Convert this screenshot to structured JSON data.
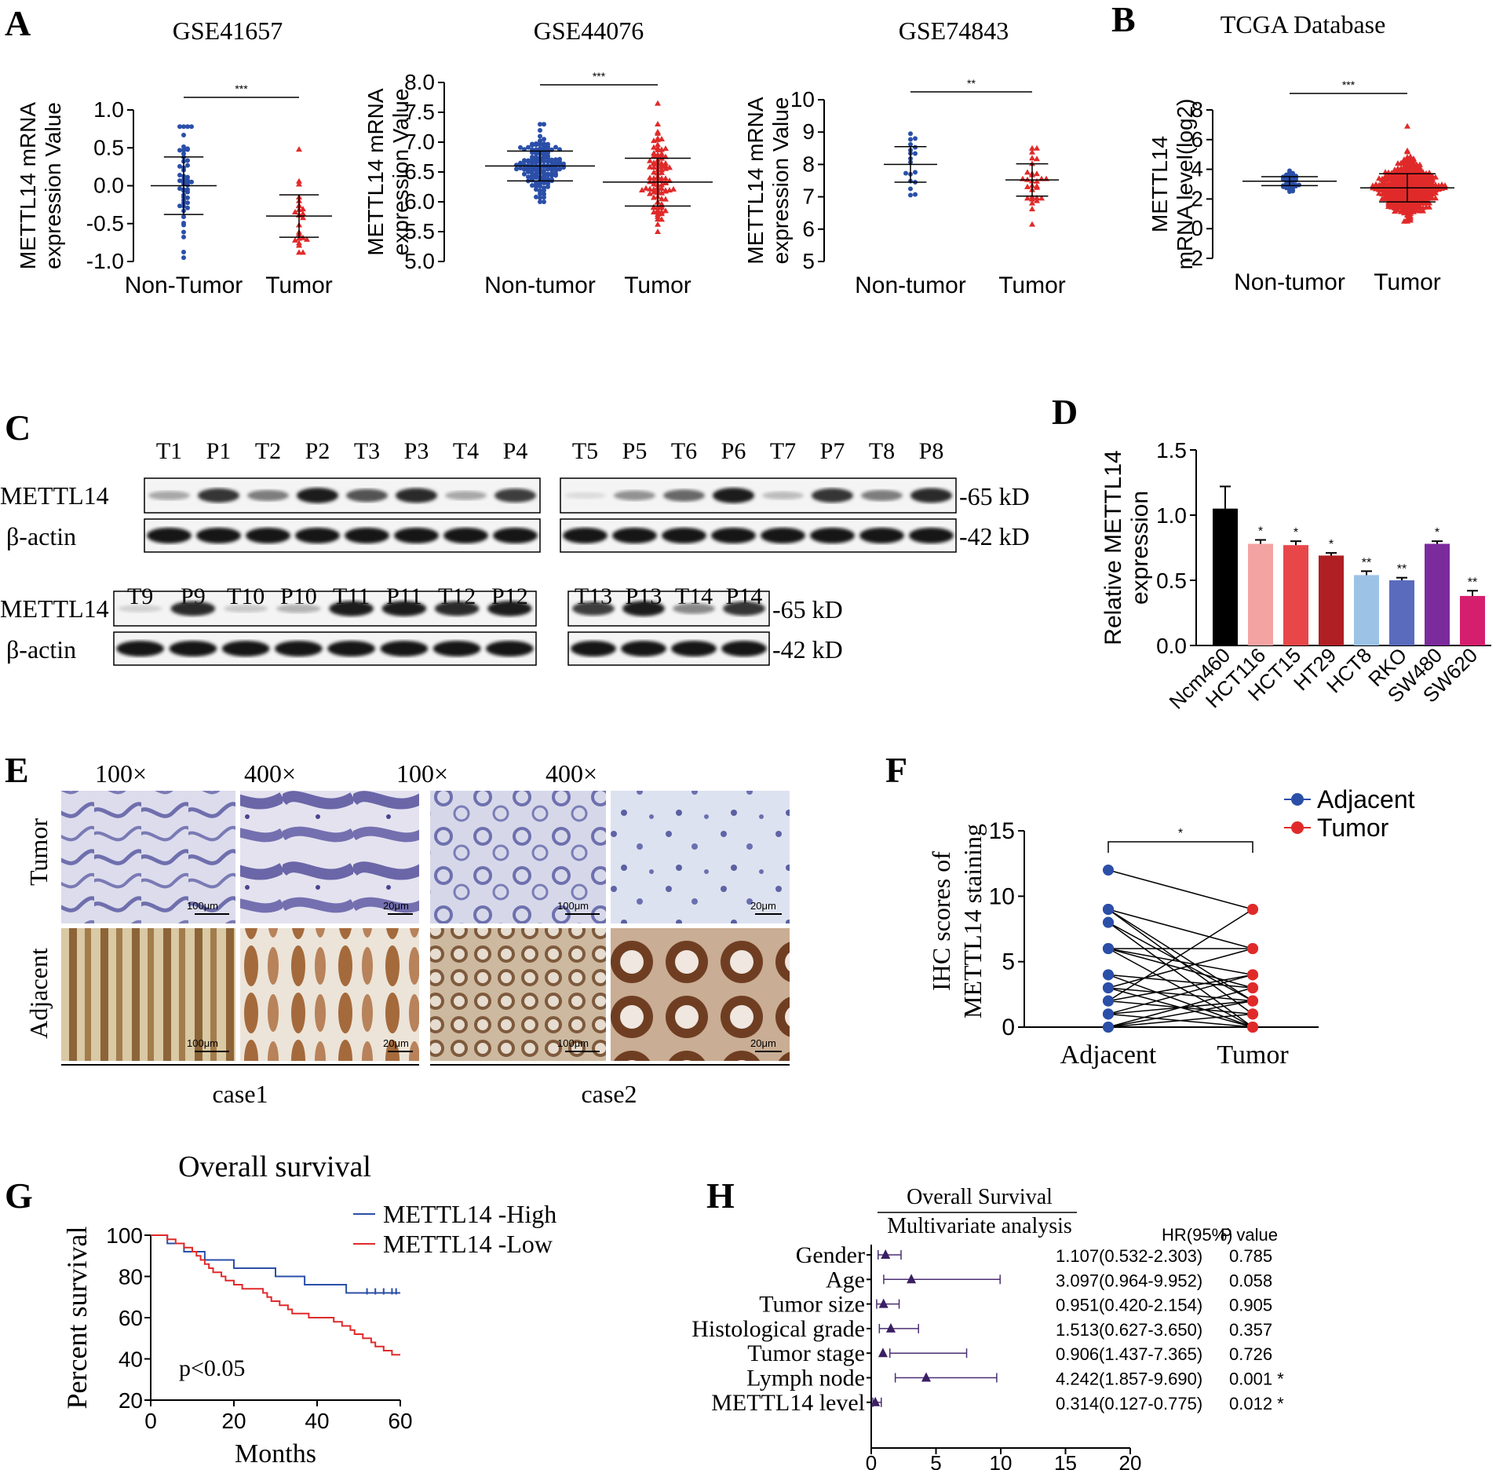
{
  "panel_labels": {
    "A": "A",
    "B": "B",
    "C": "C",
    "D": "D",
    "E": "E",
    "F": "F",
    "G": "G",
    "H": "H"
  },
  "chart_data": [
    {
      "id": "A1",
      "type": "scatter",
      "title": "GSE41657",
      "ylabel": [
        "METTL14 mRNA",
        "expression Value"
      ],
      "categories": [
        "Non-Tumor",
        "Tumor"
      ],
      "yticks": [
        "-1.0",
        "-0.5",
        "0.0",
        "0.5",
        "1.0"
      ],
      "ylim": [
        -1.0,
        1.0
      ],
      "significance": "***",
      "groups": [
        {
          "name": "Non-Tumor",
          "color": "#2b4fa8",
          "n": 51,
          "mean": 0.0,
          "sd": 0.38,
          "min": -0.95,
          "max": 0.78
        },
        {
          "name": "Tumor",
          "color": "#e02a2a",
          "n": 25,
          "mean": -0.4,
          "sd": 0.28,
          "min": -0.88,
          "max": 0.48
        }
      ]
    },
    {
      "id": "A2",
      "type": "scatter",
      "title": "GSE44076",
      "ylabel": [
        "METTL14 mRNA",
        "expression Value"
      ],
      "categories": [
        "Non-tumor",
        "Tumor"
      ],
      "yticks": [
        "5.0",
        "5.5",
        "6.0",
        "6.5",
        "7.0",
        "7.5",
        "8.0"
      ],
      "ylim": [
        5.0,
        8.0
      ],
      "significance": "***",
      "groups": [
        {
          "name": "Non-tumor",
          "color": "#2b4fa8",
          "n": 148,
          "mean": 6.6,
          "sd": 0.25,
          "min": 6.0,
          "max": 7.3
        },
        {
          "name": "Tumor",
          "color": "#e02a2a",
          "n": 98,
          "mean": 6.33,
          "sd": 0.4,
          "min": 5.5,
          "max": 7.65
        }
      ]
    },
    {
      "id": "A3",
      "type": "scatter",
      "title": "GSE74843",
      "ylabel": [
        "METTL14 mRNA",
        "expression Value"
      ],
      "categories": [
        "Non-tumor",
        "Tumor"
      ],
      "yticks": [
        "5",
        "6",
        "7",
        "8",
        "9",
        "10"
      ],
      "ylim": [
        5,
        10
      ],
      "significance": "**",
      "groups": [
        {
          "name": "Non-tumor",
          "color": "#2b4fa8",
          "n": 18,
          "mean": 8.0,
          "sd": 0.55,
          "min": 7.05,
          "max": 8.95
        },
        {
          "name": "Tumor",
          "color": "#e02a2a",
          "n": 30,
          "mean": 7.52,
          "sd": 0.5,
          "min": 6.15,
          "max": 8.5
        }
      ]
    },
    {
      "id": "B",
      "type": "scatter",
      "title": "TCGA Database",
      "ylabel": [
        "METTL14",
        "mRNA level(log2)"
      ],
      "categories": [
        "Non-tumor",
        "Tumor"
      ],
      "yticks": [
        "-2",
        "0",
        "2",
        "4",
        "6",
        "8"
      ],
      "ylim": [
        -2,
        8
      ],
      "significance": "***",
      "groups": [
        {
          "name": "Non-tumor",
          "color": "#2b4fa8",
          "n": 45,
          "mean": 3.2,
          "sd": 0.3,
          "min": 2.5,
          "max": 3.9
        },
        {
          "name": "Tumor",
          "color": "#e02a2a",
          "n": 420,
          "mean": 2.75,
          "sd": 0.95,
          "min": 0.5,
          "max": 6.9
        }
      ]
    },
    {
      "id": "D",
      "type": "bar",
      "ylabel": [
        "Relative METTL14",
        "expression"
      ],
      "categories": [
        "Ncm460",
        "HCT116",
        "HCT15",
        "HT29",
        "HCT8",
        "RKO",
        "SW480",
        "SW620"
      ],
      "values": [
        1.05,
        0.78,
        0.77,
        0.69,
        0.54,
        0.5,
        0.78,
        0.38
      ],
      "errors": [
        0.17,
        0.03,
        0.03,
        0.02,
        0.03,
        0.02,
        0.02,
        0.04
      ],
      "colors": [
        "#000000",
        "#f4a3a3",
        "#e8474a",
        "#b01f24",
        "#9cc3e6",
        "#5a6bbd",
        "#7b2b9c",
        "#d61e6e"
      ],
      "significance": [
        "",
        "*",
        "*",
        "*",
        "**",
        "**",
        "*",
        "**"
      ],
      "yticks": [
        "0.0",
        "0.5",
        "1.0",
        "1.5"
      ],
      "ylim": [
        0,
        1.5
      ]
    },
    {
      "id": "F",
      "type": "line",
      "ylabel": [
        "IHC scores of",
        "METTL14 staining"
      ],
      "categories": [
        "Adjacent",
        "Tumor"
      ],
      "yticks": [
        "0",
        "5",
        "10",
        "15"
      ],
      "ylim": [
        0,
        15
      ],
      "significance": "*",
      "legend": [
        {
          "label": "Adjacent",
          "color": "#2b4fa8"
        },
        {
          "label": "Tumor",
          "color": "#e02a2a"
        }
      ],
      "pairs": [
        [
          12,
          9
        ],
        [
          9,
          6
        ],
        [
          9,
          1
        ],
        [
          8,
          2
        ],
        [
          8,
          0
        ],
        [
          6,
          6
        ],
        [
          6,
          0
        ],
        [
          6,
          4
        ],
        [
          4,
          3
        ],
        [
          4,
          0
        ],
        [
          3,
          2
        ],
        [
          3,
          6
        ],
        [
          2,
          1
        ],
        [
          2,
          9
        ],
        [
          1,
          0
        ],
        [
          1,
          2
        ],
        [
          0,
          3
        ],
        [
          0,
          2
        ],
        [
          0,
          1
        ],
        [
          2,
          4
        ],
        [
          6,
          3
        ],
        [
          3,
          0
        ],
        [
          1,
          4
        ],
        [
          9,
          2
        ]
      ]
    },
    {
      "id": "G",
      "type": "line",
      "title": "Overall survival",
      "ylabel": "Percent survival",
      "xlabel": "Months",
      "annotation": "p<0.05",
      "yticks": [
        "20",
        "40",
        "60",
        "80",
        "100"
      ],
      "xticks": [
        "0",
        "20",
        "40",
        "60"
      ],
      "ylim": [
        20,
        100
      ],
      "xlim": [
        0,
        60
      ],
      "series": [
        {
          "name": "METTL14 -High",
          "color": "#2b4fa8",
          "steps": [
            [
              0,
              100
            ],
            [
              4,
              96
            ],
            [
              8,
              92
            ],
            [
              13,
              88
            ],
            [
              20,
              84
            ],
            [
              30,
              80
            ],
            [
              37,
              76
            ],
            [
              47,
              72
            ],
            [
              60,
              72
            ]
          ],
          "censor": [
            52,
            54,
            56,
            58,
            59
          ]
        },
        {
          "name": "METTL14 -Low",
          "color": "#e02a2a",
          "steps": [
            [
              0,
              100
            ],
            [
              4,
              98
            ],
            [
              6,
              96
            ],
            [
              8,
              94
            ],
            [
              10,
              92
            ],
            [
              11,
              90
            ],
            [
              12,
              88
            ],
            [
              13,
              86
            ],
            [
              14,
              84
            ],
            [
              15,
              82
            ],
            [
              17,
              80
            ],
            [
              18,
              78
            ],
            [
              20,
              76
            ],
            [
              22,
              74
            ],
            [
              27,
              72
            ],
            [
              28,
              70
            ],
            [
              29,
              68
            ],
            [
              31,
              66
            ],
            [
              33,
              64
            ],
            [
              34,
              62
            ],
            [
              38,
              60
            ],
            [
              44,
              58
            ],
            [
              46,
              56
            ],
            [
              48,
              54
            ],
            [
              49,
              52
            ],
            [
              51,
              50
            ],
            [
              53,
              48
            ],
            [
              54,
              46
            ],
            [
              56,
              44
            ],
            [
              58,
              42
            ],
            [
              60,
              42
            ]
          ],
          "censor": []
        }
      ]
    },
    {
      "id": "H",
      "type": "scatter",
      "title": [
        "Overall Survival",
        "Multivariate analysis"
      ],
      "column_headers": [
        "HR(95%)",
        "P value"
      ],
      "xticks": [
        "0",
        "5",
        "10",
        "15",
        "20"
      ],
      "xlim": [
        0,
        20
      ],
      "rows": [
        {
          "label": "Gender",
          "hr": 1.107,
          "low": 0.532,
          "high": 2.303,
          "text": "1.107(0.532-2.303)",
          "p": "0.785"
        },
        {
          "label": "Age",
          "hr": 3.097,
          "low": 0.964,
          "high": 9.952,
          "text": "3.097(0.964-9.952)",
          "p": "0.058"
        },
        {
          "label": "Tumor size",
          "hr": 0.951,
          "low": 0.42,
          "high": 2.154,
          "text": "0.951(0.420-2.154)",
          "p": "0.905"
        },
        {
          "label": "Histological grade",
          "hr": 1.513,
          "low": 0.627,
          "high": 3.65,
          "text": "1.513(0.627-3.650)",
          "p": "0.357"
        },
        {
          "label": "Tumor stage",
          "hr": 0.906,
          "low": 1.437,
          "high": 7.365,
          "text": "0.906(1.437-7.365)",
          "p": "0.726"
        },
        {
          "label": "Lymph node",
          "hr": 4.242,
          "low": 1.857,
          "high": 9.69,
          "text": "4.242(1.857-9.690)",
          "p": "0.001 *"
        },
        {
          "label": "METTL14 level",
          "hr": 0.314,
          "low": 0.127,
          "high": 0.775,
          "text": "0.314(0.127-0.775)",
          "p": "0.012 *"
        }
      ]
    }
  ],
  "western_blot": {
    "protein": "METTL14",
    "loading": "β-actin",
    "kd_top": "-65 kD",
    "kd_bottom": "-42 kD",
    "blocks": [
      {
        "lanes": [
          "T1",
          "P1",
          "T2",
          "P2",
          "T3",
          "P3",
          "T4",
          "P4"
        ],
        "intensity": [
          0.3,
          0.85,
          0.5,
          0.95,
          0.7,
          0.9,
          0.3,
          0.8
        ]
      },
      {
        "lanes": [
          "T5",
          "P5",
          "T6",
          "P6",
          "T7",
          "P7",
          "T8",
          "P8"
        ],
        "intensity": [
          0.05,
          0.4,
          0.6,
          0.95,
          0.2,
          0.85,
          0.5,
          0.9
        ]
      },
      {
        "lanes": [
          "T9",
          "P9",
          "T10",
          "P10",
          "T11",
          "P11",
          "T12",
          "P12"
        ],
        "intensity": [
          0.1,
          0.9,
          0.15,
          0.25,
          0.95,
          0.95,
          0.9,
          0.95
        ]
      },
      {
        "lanes": [
          "T13",
          "P13",
          "T14",
          "P14"
        ],
        "intensity": [
          0.8,
          0.95,
          0.45,
          0.85
        ]
      }
    ]
  },
  "ihc": {
    "magnifications": [
      "100×",
      "400×",
      "100×",
      "400×"
    ],
    "rows": [
      "Tumor",
      "Adjacent"
    ],
    "cases": [
      "case1",
      "case2"
    ],
    "scale_bars": [
      "100μm",
      "20μm",
      "100μm",
      "20μm"
    ]
  }
}
